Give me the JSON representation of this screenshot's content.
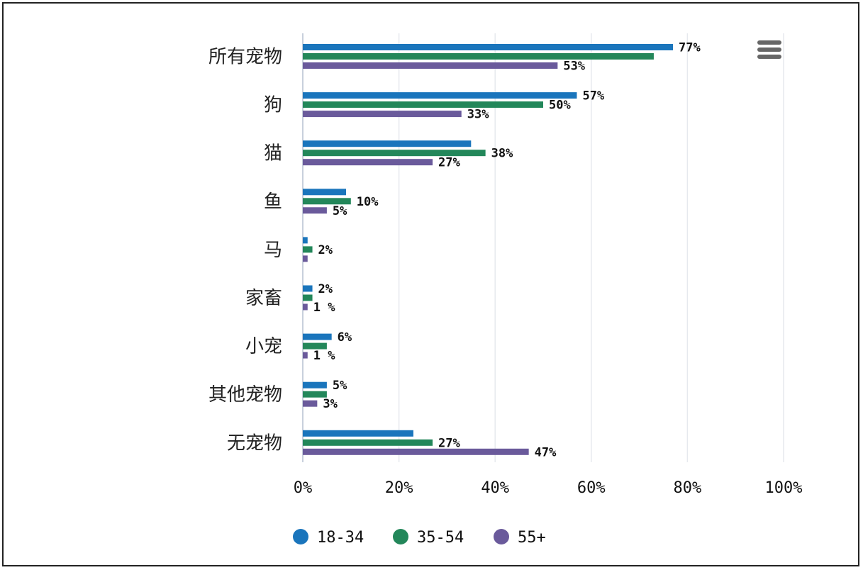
{
  "menu_icon": "hamburger-menu-icon",
  "chart_data": {
    "type": "bar",
    "orientation": "horizontal",
    "categories": [
      "所有宠物",
      "狗",
      "猫",
      "鱼",
      "马",
      "家畜",
      "小宠",
      "其他宠物",
      "无宠物"
    ],
    "series": [
      {
        "name": "18-34",
        "color": "#1a75bc",
        "values": [
          77,
          57,
          35,
          9,
          1,
          2,
          6,
          5,
          23
        ],
        "labels": [
          "77%",
          "57%",
          "",
          "",
          "",
          "2%",
          "6%",
          "5%",
          ""
        ]
      },
      {
        "name": "35-54",
        "color": "#23875a",
        "values": [
          73,
          50,
          38,
          10,
          2,
          2,
          5,
          5,
          27
        ],
        "labels": [
          "",
          "50%",
          "38%",
          "10%",
          "2%",
          "",
          "",
          "",
          "27%"
        ]
      },
      {
        "name": "55+",
        "color": "#6a5a9b",
        "values": [
          53,
          33,
          27,
          5,
          1,
          1,
          1,
          3,
          47
        ],
        "labels": [
          "53%",
          "33%",
          "27%",
          "5%",
          "",
          "1 %",
          "1 %",
          "3%",
          "47%"
        ]
      }
    ],
    "x_ticks": [
      "0%",
      "20%",
      "40%",
      "60%",
      "80%",
      "100%"
    ],
    "xlim": [
      0,
      100
    ],
    "grid": true,
    "legend_position": "bottom"
  }
}
